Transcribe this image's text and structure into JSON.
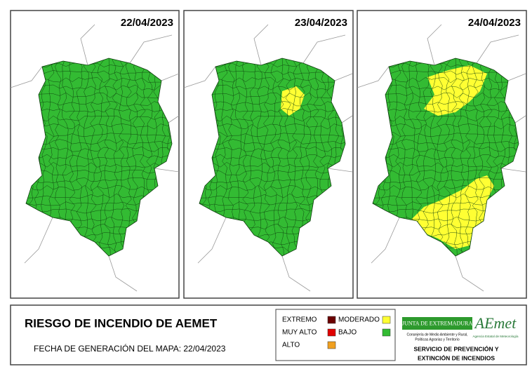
{
  "panels": [
    {
      "date": "22/04/2023"
    },
    {
      "date": "23/04/2023"
    },
    {
      "date": "24/04/2023"
    }
  ],
  "legend_box": {
    "title": "RIESGO DE INCENDIO DE AEMET",
    "subtitle": "FECHA DE GENERACIÓN DEL MAPA: 22/04/2023",
    "legend": [
      {
        "label": "EXTREMO",
        "color": "#6b0000"
      },
      {
        "label": "MUY ALTO",
        "color": "#e00000"
      },
      {
        "label": "ALTO",
        "color": "#f0a020"
      },
      {
        "label": "MODERADO",
        "color": "#ffff33"
      },
      {
        "label": "BAJO",
        "color": "#33bb33"
      }
    ],
    "logos": {
      "junta": "JUNTA DE EXTREMADURA",
      "junta_sub": [
        "Consejería de Medio Ambiente y Rural,",
        "Políticas Agrarias y Territorio"
      ],
      "aemet": "AEmet",
      "aemet_sub": "Agencia Estatal de Meteorología"
    },
    "service": [
      "SERVICIO DE PREVENCIÓN Y",
      "EXTINCIÓN DE INCENDIOS"
    ]
  }
}
